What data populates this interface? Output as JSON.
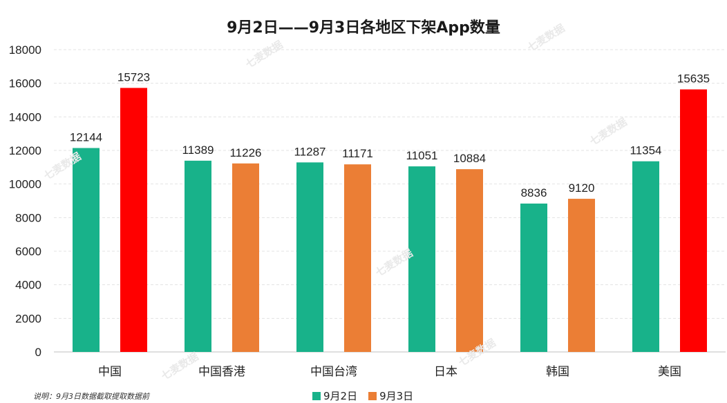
{
  "chart_data": {
    "type": "bar",
    "title": "9月2日——9月3日各地区下架App数量",
    "categories": [
      "中国",
      "中国香港",
      "中国台湾",
      "日本",
      "韩国",
      "美国"
    ],
    "series": [
      {
        "name": "9月2日",
        "color": "#18B28A",
        "values": [
          12144,
          11389,
          11287,
          11051,
          8836,
          11354
        ]
      },
      {
        "name": "9月3日",
        "color": "#EB7E35",
        "values": [
          15723,
          11226,
          11171,
          10884,
          9120,
          15635
        ]
      }
    ],
    "highlight_color": "#FF0000",
    "highlighted_bars": [
      {
        "series": 1,
        "index": 0
      },
      {
        "series": 1,
        "index": 5
      }
    ],
    "ylim": [
      0,
      18000
    ],
    "yticks": [
      0,
      2000,
      4000,
      6000,
      8000,
      10000,
      12000,
      14000,
      16000,
      18000
    ],
    "xlabel": "",
    "ylabel": "",
    "grid": true,
    "legend_position": "bottom-center"
  },
  "note": "说明：9月3日数据截取提取数据前",
  "watermark": "七麦数据"
}
